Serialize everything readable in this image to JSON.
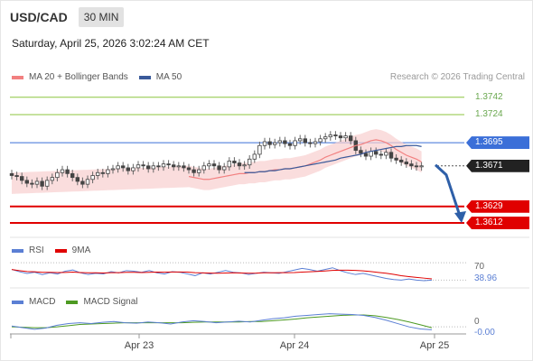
{
  "header": {
    "symbol": "USD/CAD",
    "timeframe": "30 MIN",
    "datetime": "Saturday, April 25, 2026 3:02:24 AM CET"
  },
  "legend": {
    "bollinger_label": "MA 20 + Bollinger Bands",
    "ma50_label": "MA 50",
    "credit": "Research © 2026 Trading Central"
  },
  "colors": {
    "resistance": "#8cc63f",
    "pivot": "#3b6fd8",
    "current": "#222222",
    "support": "#e00000",
    "candle_up": "#555555",
    "candle_down": "#555555",
    "ma20": "#f28080",
    "band_fill": "#f8cfcf",
    "ma50": "#3a5a9a",
    "arrow": "#2e5fa8",
    "rsi": "#5b7fd4",
    "rsi_ma": "#e00000",
    "macd": "#5b7fd4",
    "macd_signal": "#4d9a22"
  },
  "chart_data": {
    "type": "candlestick",
    "symbol": "USD/CAD",
    "timeframe": "30 MIN",
    "y_range": [
      1.3598,
      1.3752
    ],
    "x_ticks": [
      "Apr 23",
      "Apr 24",
      "Apr 25"
    ],
    "levels": [
      {
        "kind": "resistance",
        "value": "1.3742"
      },
      {
        "kind": "resistance",
        "value": "1.3724"
      },
      {
        "kind": "pivot",
        "value": "1.3695"
      },
      {
        "kind": "current",
        "value": "1.3671"
      },
      {
        "kind": "support",
        "value": "1.3629"
      },
      {
        "kind": "support",
        "value": "1.3612"
      }
    ],
    "close_series": [
      1.3661,
      1.366,
      1.3656,
      1.3653,
      1.3652,
      1.3655,
      1.365,
      1.3656,
      1.3659,
      1.3664,
      1.3667,
      1.3663,
      1.3659,
      1.3655,
      1.3652,
      1.3657,
      1.3661,
      1.3664,
      1.3663,
      1.3667,
      1.3668,
      1.3671,
      1.3669,
      1.3666,
      1.3669,
      1.3672,
      1.3671,
      1.3668,
      1.3671,
      1.367,
      1.3673,
      1.3672,
      1.367,
      1.3671,
      1.3669,
      1.3667,
      1.3664,
      1.3667,
      1.3671,
      1.3673,
      1.3671,
      1.3667,
      1.367,
      1.3676,
      1.3674,
      1.3671,
      1.3672,
      1.3678,
      1.3683,
      1.3692,
      1.3696,
      1.3693,
      1.3695,
      1.3697,
      1.3694,
      1.3692,
      1.3697,
      1.3699,
      1.3695,
      1.3694,
      1.3696,
      1.3699,
      1.3701,
      1.3703,
      1.3702,
      1.37,
      1.3702,
      1.3697,
      1.3687,
      1.3684,
      1.3681,
      1.3686,
      1.3683,
      1.3682,
      1.3685,
      1.3679,
      1.3677,
      1.3675,
      1.3673,
      1.3671,
      1.367,
      1.3671
    ],
    "ma20": [
      1.366,
      1.3659,
      1.3658,
      1.3657,
      1.3657,
      1.3658,
      1.3659,
      1.366,
      1.3661,
      1.3662,
      1.3663,
      1.3663,
      1.3664,
      1.3664,
      1.3665,
      1.3665,
      1.3666,
      1.3667,
      1.3667,
      1.3668,
      1.3668,
      1.3669,
      1.367,
      1.3671,
      1.3673,
      1.3675,
      1.3677,
      1.368,
      1.3682,
      1.3684,
      1.3686,
      1.3688,
      1.369,
      1.3692,
      1.3693,
      1.3695,
      1.3697,
      1.3698,
      1.3697,
      1.3695,
      1.3692,
      1.3688,
      1.3685,
      1.3682,
      1.368,
      1.3678,
      1.3675
    ],
    "ma20_start_index": 35,
    "ma50": [
      1.3664,
      1.3664,
      1.3664,
      1.3665,
      1.3665,
      1.3666,
      1.3666,
      1.3667,
      1.3668,
      1.3668,
      1.3669,
      1.367,
      1.3671,
      1.3672,
      1.3673,
      1.3674,
      1.3675,
      1.3676,
      1.3677,
      1.3679,
      1.368,
      1.3681,
      1.3682,
      1.3683,
      1.3685,
      1.3686,
      1.3687,
      1.3688,
      1.3689,
      1.369,
      1.3691,
      1.3691,
      1.3692,
      1.3692,
      1.3692,
      1.3691
    ],
    "ma50_start_index": 46,
    "band_width": 0.0011,
    "forecast_target": 1.3612,
    "rsi": {
      "label": "RSI",
      "ma_label": "9MA",
      "level": "70",
      "value": "38.96",
      "series": [
        58,
        54,
        51,
        53,
        49,
        52,
        50,
        55,
        57,
        52,
        49,
        51,
        50,
        54,
        52,
        56,
        55,
        53,
        56,
        52,
        50,
        54,
        53,
        50,
        47,
        52,
        50,
        53,
        56,
        53,
        52,
        49,
        51,
        53,
        52,
        51,
        54,
        57,
        60,
        58,
        55,
        58,
        61,
        56,
        52,
        49,
        51,
        48,
        45,
        42,
        40,
        39,
        41,
        39,
        38,
        39
      ]
    },
    "macd": {
      "label": "MACD",
      "signal_label": "MACD Signal",
      "level": "0",
      "value": "-0.00",
      "macd_series": [
        0.2,
        -0.2,
        -0.6,
        -0.3,
        0.4,
        0.8,
        1.0,
        0.8,
        1.1,
        1.3,
        1.0,
        0.9,
        1.2,
        1.0,
        0.7,
        1.2,
        1.5,
        1.3,
        1.0,
        1.2,
        1.4,
        1.2,
        1.6,
        2.0,
        2.2,
        2.6,
        2.8,
        3.0,
        3.2,
        3.1,
        3.0,
        2.8,
        2.3,
        1.6,
        0.8,
        0.0,
        -0.5,
        -0.7
      ],
      "signal_series": [
        0.0,
        -0.1,
        -0.2,
        -0.2,
        0.0,
        0.3,
        0.6,
        0.7,
        0.8,
        0.9,
        1.0,
        1.0,
        1.0,
        1.0,
        1.0,
        1.0,
        1.1,
        1.2,
        1.2,
        1.2,
        1.2,
        1.3,
        1.3,
        1.5,
        1.7,
        1.9,
        2.2,
        2.4,
        2.6,
        2.8,
        2.9,
        2.9,
        2.7,
        2.3,
        1.8,
        1.2,
        0.5,
        -0.2
      ]
    }
  }
}
